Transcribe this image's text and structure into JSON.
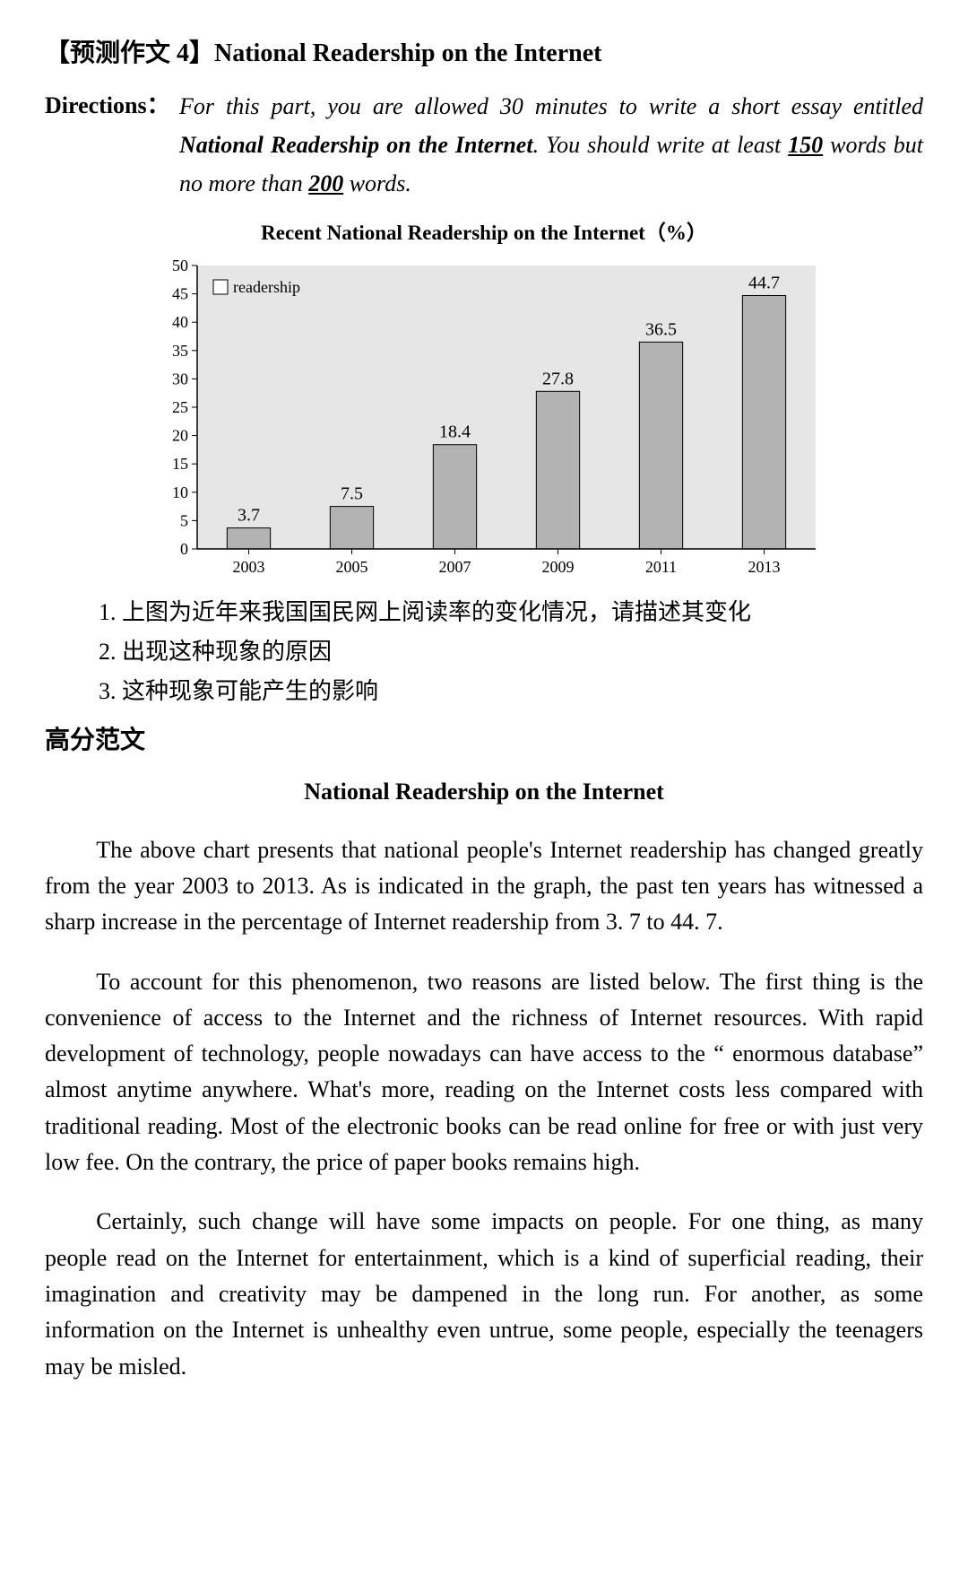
{
  "header": {
    "prefix": "【预测作文 4】",
    "title_en": "National Readership on the Internet"
  },
  "directions": {
    "label": "Directions：",
    "lead": "For this part, you are allowed 30 minutes to write a short essay entitled ",
    "essay_title": "National Readership on the Internet",
    "mid1": ".  You should write at least ",
    "min_words": "150",
    "mid2": " words but no more than ",
    "max_words": "200",
    "tail": " words."
  },
  "chart": {
    "title": "Recent National Readership on the Internet（%）",
    "type": "bar",
    "legend_label": "readership",
    "categories": [
      "2003",
      "2005",
      "2007",
      "2009",
      "2011",
      "2013"
    ],
    "values": [
      3.7,
      7.5,
      18.4,
      27.8,
      36.5,
      44.7
    ],
    "ylim": [
      0,
      50
    ],
    "ytick_step": 5,
    "plot_bg": "#e6e6e6",
    "bar_fill": "#b3b3b3",
    "bar_stroke": "#000000",
    "axis_color": "#000000",
    "tick_color": "#000000",
    "text_color": "#000000",
    "axis_fontsize": 18,
    "value_fontsize": 20,
    "legend_fontsize": 18,
    "bar_width_ratio": 0.42,
    "legend_box_fill": "#ffffff",
    "legend_box_stroke": "#000000"
  },
  "prompts": {
    "p1": "1.  上图为近年来我国国民网上阅读率的变化情况，请描述其变化",
    "p2": "2.  出现这种现象的原因",
    "p3": "3.  这种现象可能产生的影响"
  },
  "section_heading": "高分范文",
  "essay": {
    "title": "National Readership on the Internet",
    "para1": "The above chart presents that national people's Internet readership has changed greatly from the year 2003 to 2013.  As is indicated in the graph, the past ten years has witnessed a sharp increase in the percentage of Internet readership from 3. 7 to 44. 7.",
    "para2": "To account for this phenomenon, two reasons are listed below.  The first thing is the convenience of access to the Internet and the richness of Internet resources.  With rapid development of technology, people nowadays can have access to the “ enormous database” almost anytime anywhere.  What's more, reading on the Internet costs less compared with traditional reading.  Most of the electronic books can be read online for free or with just very low fee.  On the contrary, the price of paper books remains high.",
    "para3": "Certainly, such change will have some impacts on people. For one thing, as many people read on the Internet for entertainment, which is a kind of superficial reading, their imagination and creativity may be dampened in the long run.  For another, as some information on the Internet is unhealthy even untrue, some people, especially the teenagers may be misled."
  }
}
